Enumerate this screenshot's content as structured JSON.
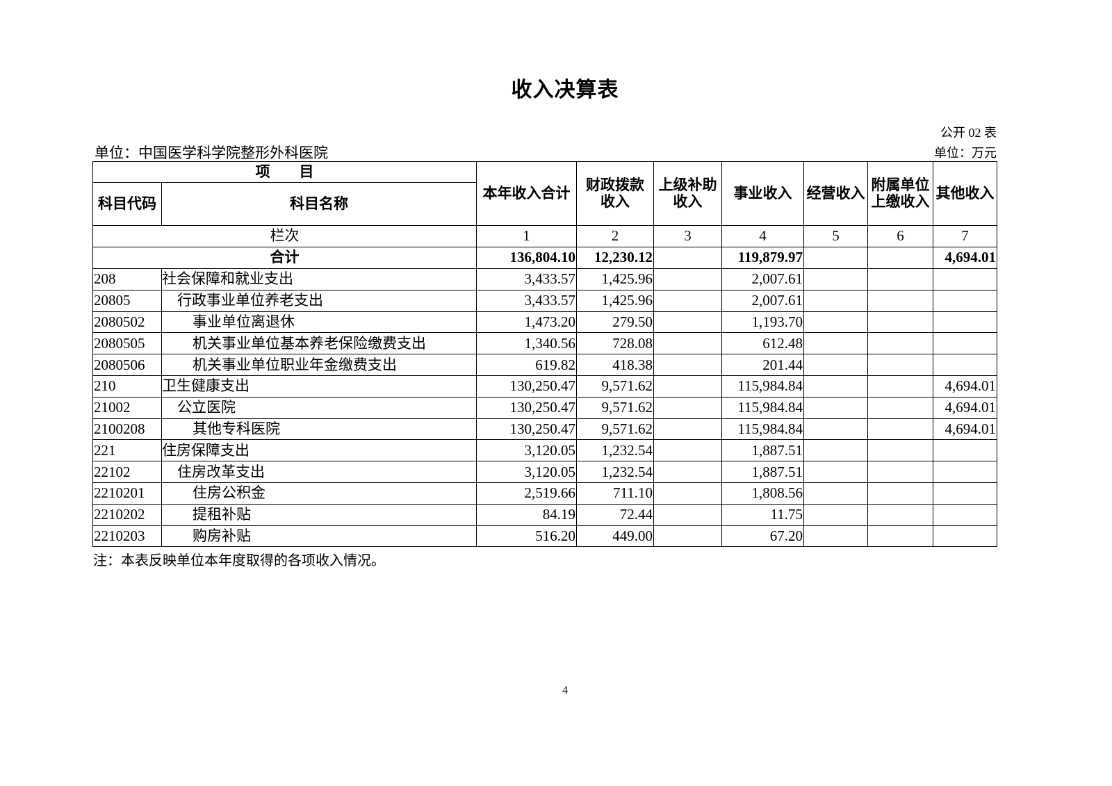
{
  "title": "收入决算表",
  "form_no": "公开 02 表",
  "unit_left": "单位：中国医学科学院整形外科医院",
  "unit_right": "单位：万元",
  "header": {
    "item": "项　　目",
    "code": "科目代码",
    "name": "科目名称",
    "columns": [
      "本年收入合计",
      "财政拨款收入",
      "上级补助收入",
      "事业收入",
      "经营收入",
      "附属单位上缴收入",
      "其他收入"
    ],
    "column_lines": [
      [
        "本年收入合计"
      ],
      [
        "财政拨款",
        "收入"
      ],
      [
        "上级补助",
        "收入"
      ],
      [
        "事业收入"
      ],
      [
        "经营收入"
      ],
      [
        "附属单位",
        "上缴收入"
      ],
      [
        "其他收入"
      ]
    ],
    "seq_label": "栏次",
    "seq": [
      "1",
      "2",
      "3",
      "4",
      "5",
      "6",
      "7"
    ]
  },
  "total": {
    "label": "合计",
    "values": [
      "136,804.10",
      "12,230.12",
      "",
      "119,879.97",
      "",
      "",
      "4,694.01"
    ]
  },
  "rows": [
    {
      "code": "208",
      "name": "社会保障和就业支出",
      "values": [
        "3,433.57",
        "1,425.96",
        "",
        "2,007.61",
        "",
        "",
        ""
      ]
    },
    {
      "code": "20805",
      "name": "行政事业单位养老支出",
      "values": [
        "3,433.57",
        "1,425.96",
        "",
        "2,007.61",
        "",
        "",
        ""
      ]
    },
    {
      "code": "2080502",
      "name": "事业单位离退休",
      "values": [
        "1,473.20",
        "279.50",
        "",
        "1,193.70",
        "",
        "",
        ""
      ]
    },
    {
      "code": "2080505",
      "name": "机关事业单位基本养老保险缴费支出",
      "values": [
        "1,340.56",
        "728.08",
        "",
        "612.48",
        "",
        "",
        ""
      ]
    },
    {
      "code": "2080506",
      "name": "机关事业单位职业年金缴费支出",
      "values": [
        "619.82",
        "418.38",
        "",
        "201.44",
        "",
        "",
        ""
      ]
    },
    {
      "code": "210",
      "name": "卫生健康支出",
      "values": [
        "130,250.47",
        "9,571.62",
        "",
        "115,984.84",
        "",
        "",
        "4,694.01"
      ]
    },
    {
      "code": "21002",
      "name": "公立医院",
      "values": [
        "130,250.47",
        "9,571.62",
        "",
        "115,984.84",
        "",
        "",
        "4,694.01"
      ]
    },
    {
      "code": "2100208",
      "name": "其他专科医院",
      "values": [
        "130,250.47",
        "9,571.62",
        "",
        "115,984.84",
        "",
        "",
        "4,694.01"
      ]
    },
    {
      "code": "221",
      "name": "住房保障支出",
      "values": [
        "3,120.05",
        "1,232.54",
        "",
        "1,887.51",
        "",
        "",
        ""
      ]
    },
    {
      "code": "22102",
      "name": "住房改革支出",
      "values": [
        "3,120.05",
        "1,232.54",
        "",
        "1,887.51",
        "",
        "",
        ""
      ]
    },
    {
      "code": "2210201",
      "name": "住房公积金",
      "values": [
        "2,519.66",
        "711.10",
        "",
        "1,808.56",
        "",
        "",
        ""
      ]
    },
    {
      "code": "2210202",
      "name": "提租补贴",
      "values": [
        "84.19",
        "72.44",
        "",
        "11.75",
        "",
        "",
        ""
      ]
    },
    {
      "code": "2210203",
      "name": "购房补贴",
      "values": [
        "516.20",
        "449.00",
        "",
        "67.20",
        "",
        "",
        ""
      ]
    }
  ],
  "note": "注：本表反映单位本年度取得的各项收入情况。",
  "page_number": "4"
}
